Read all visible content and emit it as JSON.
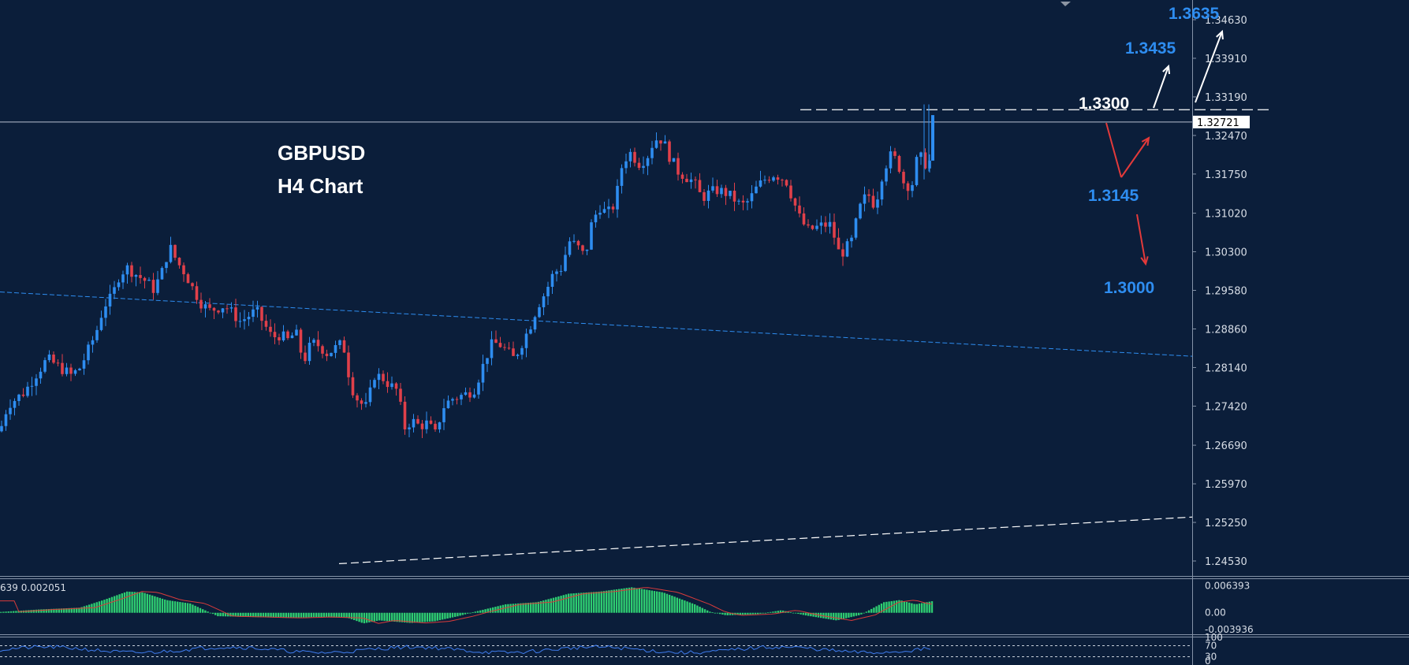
{
  "chart_data": {
    "type": "candlestick",
    "symbol_title": "GBPUSD",
    "timeframe_title": "H4 Chart",
    "current_price": "1.32721",
    "y_axis_ticks": [
      "1.34630",
      "1.33910",
      "1.33190",
      "1.32470",
      "1.31750",
      "1.31020",
      "1.30300",
      "1.29580",
      "1.28860",
      "1.28140",
      "1.27420",
      "1.26690",
      "1.25970",
      "1.25250",
      "1.24530"
    ],
    "ylim": [
      1.2418,
      1.3499
    ],
    "levels": [
      {
        "label": "1.3635",
        "color": "#2e8df0"
      },
      {
        "label": "1.3435",
        "color": "#2e8df0"
      },
      {
        "label": "1.3300",
        "color": "#ffffff"
      },
      {
        "label": "1.3145",
        "color": "#2e8df0"
      },
      {
        "label": "1.3000",
        "color": "#2e8df0"
      }
    ],
    "resistance_line": 1.3295,
    "upper_trendline": {
      "from": 1.2955,
      "to": 1.2835
    },
    "lower_trendline": {
      "from": 1.2448,
      "to": 1.2535
    },
    "close_path": [
      [
        0,
        1.2695
      ],
      [
        10,
        1.2745
      ],
      [
        20,
        1.2755
      ],
      [
        32,
        1.277
      ],
      [
        45,
        1.28
      ],
      [
        60,
        1.283
      ],
      [
        75,
        1.2815
      ],
      [
        90,
        1.28
      ],
      [
        100,
        1.281
      ],
      [
        110,
        1.284
      ],
      [
        122,
        1.288
      ],
      [
        132,
        1.293
      ],
      [
        142,
        1.2945
      ],
      [
        152,
        1.299
      ],
      [
        162,
        1.3
      ],
      [
        175,
        1.2985
      ],
      [
        185,
        1.2975
      ],
      [
        195,
        1.296
      ],
      [
        205,
        1.299
      ],
      [
        215,
        1.304
      ],
      [
        225,
        1.301
      ],
      [
        235,
        1.299
      ],
      [
        245,
        1.296
      ],
      [
        255,
        1.2935
      ],
      [
        265,
        1.292
      ],
      [
        275,
        1.2925
      ],
      [
        285,
        1.293
      ],
      [
        295,
        1.2915
      ],
      [
        305,
        1.29
      ],
      [
        315,
        1.291
      ],
      [
        325,
        1.292
      ],
      [
        335,
        1.2895
      ],
      [
        345,
        1.287
      ],
      [
        355,
        1.2875
      ],
      [
        365,
        1.2865
      ],
      [
        375,
        1.288
      ],
      [
        385,
        1.2825
      ],
      [
        395,
        1.286
      ],
      [
        405,
        1.2855
      ],
      [
        415,
        1.284
      ],
      [
        425,
        1.285
      ],
      [
        435,
        1.286
      ],
      [
        445,
        1.278
      ],
      [
        455,
        1.275
      ],
      [
        465,
        1.274
      ],
      [
        475,
        1.28
      ],
      [
        485,
        1.2795
      ],
      [
        495,
        1.278
      ],
      [
        505,
        1.277
      ],
      [
        512,
        1.27
      ],
      [
        522,
        1.2715
      ],
      [
        532,
        1.2705
      ],
      [
        542,
        1.271
      ],
      [
        552,
        1.269
      ],
      [
        562,
        1.274
      ],
      [
        572,
        1.2755
      ],
      [
        582,
        1.276
      ],
      [
        592,
        1.2765
      ],
      [
        602,
        1.2775
      ],
      [
        612,
        1.2815
      ],
      [
        622,
        1.2855
      ],
      [
        632,
        1.286
      ],
      [
        642,
        1.2845
      ],
      [
        652,
        1.283
      ],
      [
        662,
        1.286
      ],
      [
        672,
        1.289
      ],
      [
        682,
        1.293
      ],
      [
        692,
        1.2955
      ],
      [
        702,
        1.299
      ],
      [
        712,
        1.3
      ],
      [
        722,
        1.305
      ],
      [
        732,
        1.304
      ],
      [
        742,
        1.302
      ],
      [
        750,
        1.308
      ],
      [
        760,
        1.3115
      ],
      [
        770,
        1.31
      ],
      [
        780,
        1.312
      ],
      [
        790,
        1.32
      ],
      [
        800,
        1.3215
      ],
      [
        810,
        1.3195
      ],
      [
        820,
        1.3205
      ],
      [
        830,
        1.324
      ],
      [
        840,
        1.324
      ],
      [
        850,
        1.3205
      ],
      [
        860,
        1.318
      ],
      [
        870,
        1.317
      ],
      [
        880,
        1.316
      ],
      [
        890,
        1.313
      ],
      [
        900,
        1.314
      ],
      [
        910,
        1.3145
      ],
      [
        920,
        1.314
      ],
      [
        930,
        1.313
      ],
      [
        940,
        1.3115
      ],
      [
        950,
        1.3125
      ],
      [
        960,
        1.315
      ],
      [
        970,
        1.3165
      ],
      [
        980,
        1.3175
      ],
      [
        990,
        1.317
      ],
      [
        998,
        1.316
      ],
      [
        1005,
        1.313
      ],
      [
        1015,
        1.309
      ],
      [
        1025,
        1.307
      ],
      [
        1035,
        1.3075
      ],
      [
        1045,
        1.308
      ],
      [
        1055,
        1.308
      ],
      [
        1062,
        1.303
      ],
      [
        1070,
        1.303
      ],
      [
        1080,
        1.305
      ],
      [
        1090,
        1.311
      ],
      [
        1100,
        1.314
      ],
      [
        1110,
        1.3115
      ],
      [
        1118,
        1.317
      ],
      [
        1128,
        1.321
      ],
      [
        1138,
        1.32
      ],
      [
        1146,
        1.316
      ],
      [
        1156,
        1.315
      ],
      [
        1164,
        1.321
      ],
      [
        1172,
        1.32
      ],
      [
        1178,
        1.318
      ],
      [
        1183,
        1.3272
      ]
    ],
    "indicators": {
      "osc1_label": "639 0.002051",
      "osc1_ticks": [
        "0.006393",
        "0.00",
        "-0.003936"
      ],
      "osc1_range": [
        -0.0045,
        0.007
      ],
      "osc1_hist": [
        [
          0,
          0.0002
        ],
        [
          50,
          0.0008
        ],
        [
          100,
          0.0012
        ],
        [
          130,
          0.003
        ],
        [
          160,
          0.005
        ],
        [
          180,
          0.0048
        ],
        [
          210,
          0.003
        ],
        [
          240,
          0.0022
        ],
        [
          260,
          0.0005
        ],
        [
          275,
          -0.0008
        ],
        [
          320,
          -0.001
        ],
        [
          360,
          -0.0012
        ],
        [
          400,
          -0.001
        ],
        [
          440,
          -0.0012
        ],
        [
          460,
          -0.0025
        ],
        [
          480,
          -0.0018
        ],
        [
          520,
          -0.0024
        ],
        [
          550,
          -0.002
        ],
        [
          580,
          -0.0008
        ],
        [
          600,
          0.0002
        ],
        [
          640,
          0.002
        ],
        [
          680,
          0.0025
        ],
        [
          720,
          0.0045
        ],
        [
          760,
          0.005
        ],
        [
          800,
          0.006
        ],
        [
          840,
          0.0048
        ],
        [
          880,
          0.002
        ],
        [
          900,
          0.0002
        ],
        [
          920,
          -0.0006
        ],
        [
          960,
          -0.0003
        ],
        [
          990,
          0.0006
        ],
        [
          1020,
          -0.0006
        ],
        [
          1060,
          -0.0018
        ],
        [
          1090,
          -0.0005
        ],
        [
          1120,
          0.0025
        ],
        [
          1140,
          0.003
        ],
        [
          1160,
          0.002
        ],
        [
          1183,
          0.0028
        ]
      ],
      "osc2_ticks": [
        "100",
        "70",
        "30",
        "0"
      ]
    },
    "colors": {
      "background": "#0b1e3a",
      "bull": "#2e8df0",
      "bear": "#e0404a",
      "hist": "#2ecc71",
      "signal": "#d93b3b",
      "arrow_white": "#ffffff",
      "arrow_red": "#e33a3a",
      "trend_blue": "#2e8df0"
    }
  }
}
